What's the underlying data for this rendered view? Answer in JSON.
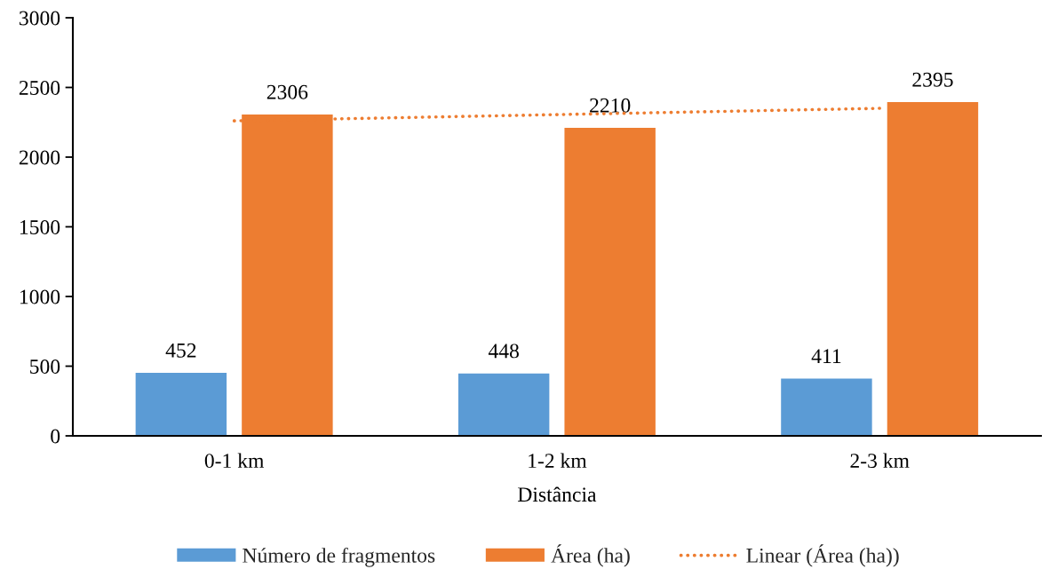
{
  "chart_data": {
    "type": "bar",
    "xlabel": "Distância",
    "categories": [
      "0-1 km",
      "1-2 km",
      "2-3 km"
    ],
    "series": [
      {
        "name": "Número de fragmentos",
        "color": "#5b9bd5",
        "values": [
          452,
          448,
          411
        ],
        "value_labels": [
          "452",
          "448",
          "411"
        ]
      },
      {
        "name": "Área (ha)",
        "color": "#ed7d31",
        "values": [
          2306,
          2210,
          2395
        ],
        "value_labels": [
          "2306",
          "2210",
          "2395"
        ]
      },
      {
        "name": "Linear (Área (ha))",
        "type": "line",
        "color": "#ed7d31",
        "values": [
          2260,
          2305,
          2350
        ],
        "line_style": "dotted",
        "marker": "none"
      }
    ],
    "ylim": [
      0,
      3000
    ],
    "yticks": [
      0,
      500,
      1000,
      1500,
      2000,
      2500,
      3000
    ],
    "grid": false,
    "legend": "bottom"
  }
}
